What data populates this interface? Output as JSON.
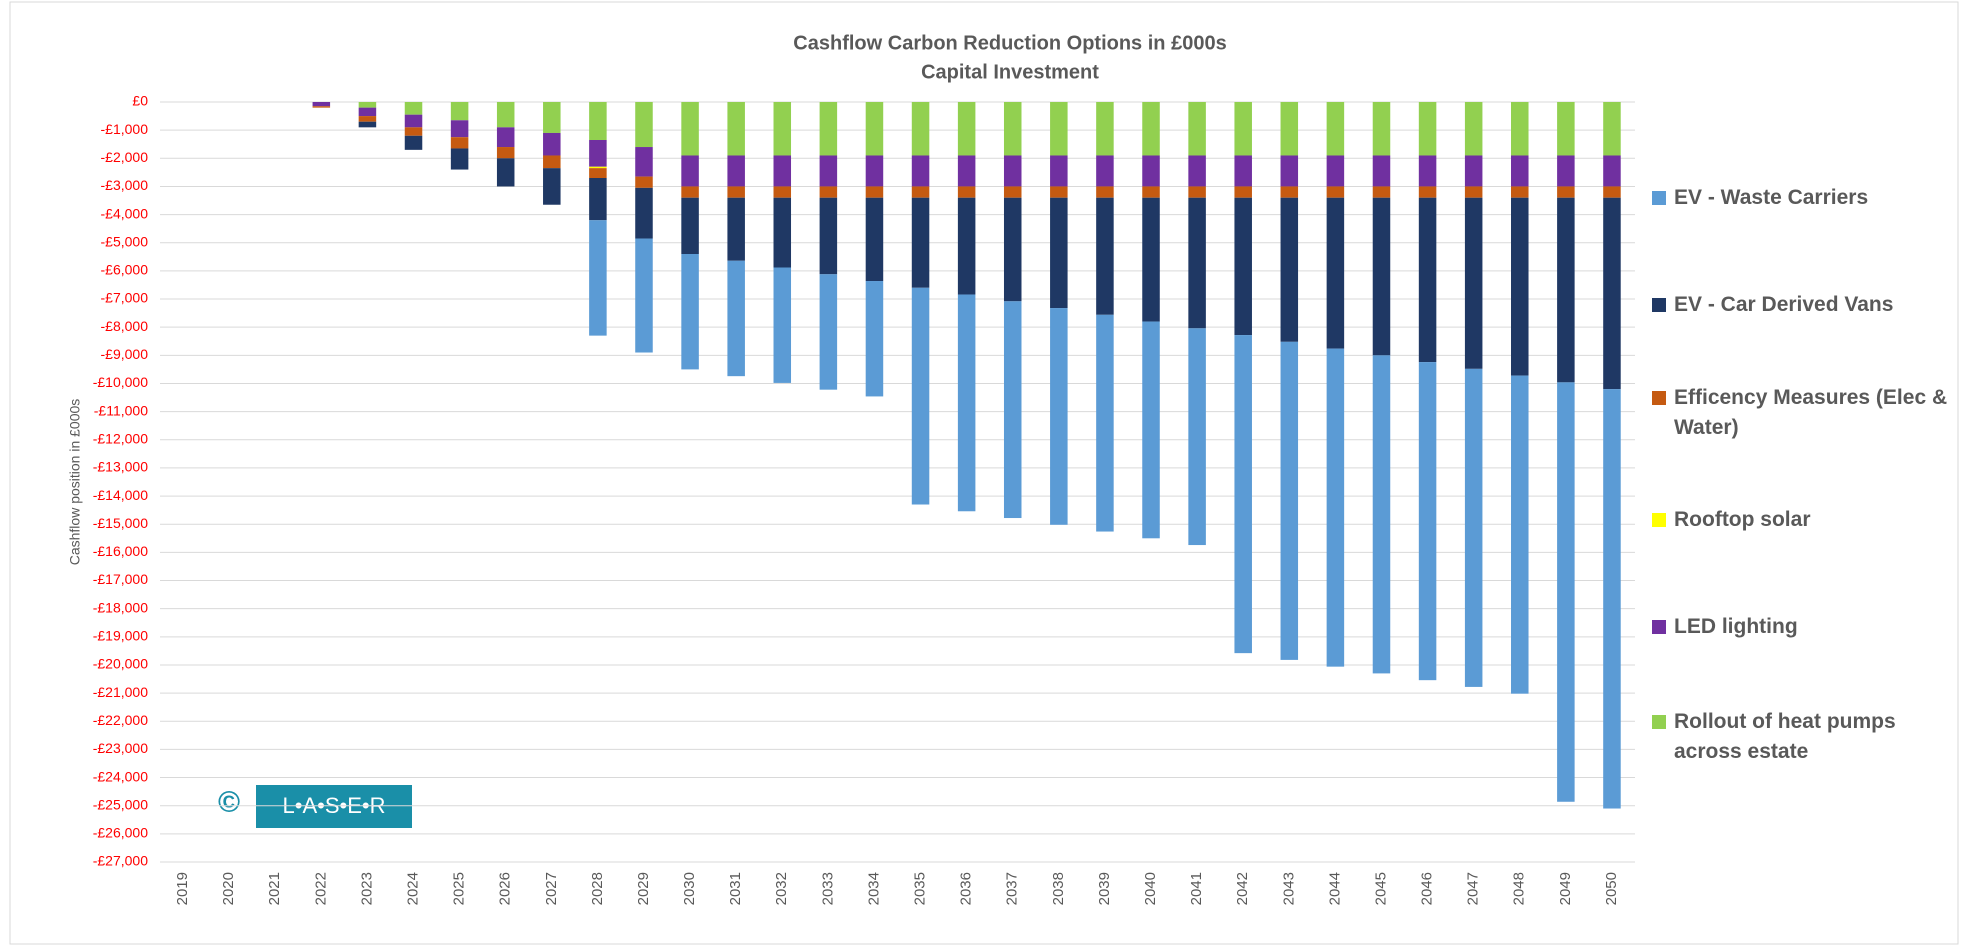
{
  "chart_data": {
    "type": "stacked_bar",
    "title": "Cashflow Carbon Reduction Options in £000s",
    "subtitle": "Capital Investment",
    "y_label": "Cashflow position in £000s",
    "logo": {
      "symbol": "©",
      "text": "L•A•S•E•R"
    },
    "categories": [
      "2019",
      "2020",
      "2021",
      "2022",
      "2023",
      "2024",
      "2025",
      "2026",
      "2027",
      "2028",
      "2029",
      "2030",
      "2031",
      "2032",
      "2033",
      "2034",
      "2035",
      "2036",
      "2037",
      "2038",
      "2039",
      "2040",
      "2041",
      "2042",
      "2043",
      "2044",
      "2045",
      "2046",
      "2047",
      "2048",
      "2049",
      "2050"
    ],
    "series": [
      {
        "name": "EV - Waste Carriers",
        "color": "#5b9bd5",
        "values": [
          0,
          0,
          0,
          0,
          0,
          0,
          0,
          0,
          0,
          -4100,
          -4050,
          -4100,
          -4100,
          -4100,
          -4100,
          -4100,
          -7700,
          -7700,
          -7700,
          -7700,
          -7700,
          -7700,
          -7700,
          -11300,
          -11300,
          -11300,
          -11300,
          -11300,
          -11300,
          -11300,
          -14900,
          -14900
        ]
      },
      {
        "name": "EV - Car Derived Vans",
        "color": "#1f3864",
        "values": [
          0,
          0,
          0,
          0,
          -200,
          -500,
          -750,
          -1000,
          -1300,
          -1500,
          -1800,
          -2000,
          -2240,
          -2480,
          -2720,
          -2960,
          -3200,
          -3440,
          -3680,
          -3920,
          -4160,
          -4400,
          -4640,
          -4880,
          -5120,
          -5360,
          -5600,
          -5840,
          -6080,
          -6320,
          -6560,
          -6800
        ]
      },
      {
        "name": "Efficency Measures (Elec & Water)",
        "color": "#c55a11",
        "values": [
          0,
          0,
          0,
          -50,
          -200,
          -300,
          -400,
          -400,
          -450,
          -350,
          -400,
          -400,
          -400,
          -400,
          -400,
          -400,
          -400,
          -400,
          -400,
          -400,
          -400,
          -400,
          -400,
          -400,
          -400,
          -400,
          -400,
          -400,
          -400,
          -400,
          -400,
          -400
        ]
      },
      {
        "name": "Rooftop solar",
        "color": "#ffff00",
        "values": [
          0,
          0,
          0,
          0,
          0,
          0,
          0,
          0,
          0,
          -50,
          0,
          0,
          0,
          0,
          0,
          0,
          0,
          0,
          0,
          0,
          0,
          0,
          0,
          0,
          0,
          0,
          0,
          0,
          0,
          0,
          0,
          0
        ]
      },
      {
        "name": "LED lighting",
        "color": "#7030a0",
        "values": [
          0,
          0,
          0,
          -150,
          -300,
          -450,
          -600,
          -700,
          -800,
          -950,
          -1050,
          -1100,
          -1100,
          -1100,
          -1100,
          -1100,
          -1100,
          -1100,
          -1100,
          -1100,
          -1100,
          -1100,
          -1100,
          -1100,
          -1100,
          -1100,
          -1100,
          -1100,
          -1100,
          -1100,
          -1100,
          -1100
        ]
      },
      {
        "name": "Rollout of heat pumps across estate",
        "color": "#92d050",
        "values": [
          0,
          0,
          0,
          0,
          -200,
          -450,
          -650,
          -900,
          -1100,
          -1350,
          -1600,
          -1900,
          -1900,
          -1900,
          -1900,
          -1900,
          -1900,
          -1900,
          -1900,
          -1900,
          -1900,
          -1900,
          -1900,
          -1900,
          -1900,
          -1900,
          -1900,
          -1900,
          -1900,
          -1900,
          -1900,
          -1900
        ]
      }
    ],
    "ylim": [
      -27000,
      0
    ],
    "yticks": [
      {
        "value": 0,
        "label": "£0"
      },
      {
        "value": -1000,
        "label": "-£1,000"
      },
      {
        "value": -2000,
        "label": "-£2,000"
      },
      {
        "value": -3000,
        "label": "-£3,000"
      },
      {
        "value": -4000,
        "label": "-£4,000"
      },
      {
        "value": -5000,
        "label": "-£5,000"
      },
      {
        "value": -6000,
        "label": "-£6,000"
      },
      {
        "value": -7000,
        "label": "-£7,000"
      },
      {
        "value": -8000,
        "label": "-£8,000"
      },
      {
        "value": -9000,
        "label": "-£9,000"
      },
      {
        "value": -10000,
        "label": "-£10,000"
      },
      {
        "value": -11000,
        "label": "-£11,000"
      },
      {
        "value": -12000,
        "label": "-£12,000"
      },
      {
        "value": -13000,
        "label": "-£13,000"
      },
      {
        "value": -14000,
        "label": "-£14,000"
      },
      {
        "value": -15000,
        "label": "-£15,000"
      },
      {
        "value": -16000,
        "label": "-£16,000"
      },
      {
        "value": -17000,
        "label": "-£17,000"
      },
      {
        "value": -18000,
        "label": "-£18,000"
      },
      {
        "value": -19000,
        "label": "-£19,000"
      },
      {
        "value": -20000,
        "label": "-£20,000"
      },
      {
        "value": -21000,
        "label": "-£21,000"
      },
      {
        "value": -22000,
        "label": "-£22,000"
      },
      {
        "value": -23000,
        "label": "-£23,000"
      },
      {
        "value": -24000,
        "label": "-£24,000"
      },
      {
        "value": -25000,
        "label": "-£25,000"
      },
      {
        "value": -26000,
        "label": "-£26,000"
      },
      {
        "value": -27000,
        "label": "-£27,000"
      }
    ],
    "grid": true,
    "legend": "right",
    "tick_label_color": "#ff0000"
  }
}
